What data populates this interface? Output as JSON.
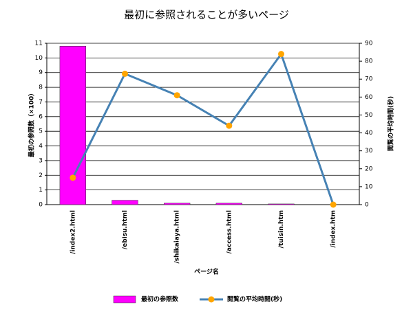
{
  "chart_data": {
    "type": "bar",
    "title": "最初に参照されることが多いページ",
    "xlabel": "ページ名",
    "ylabel": "最初の参照数（×100）",
    "y2label": "閲覧の平均時間(秒)",
    "categories": [
      "/index2.html",
      "/ebisu.html",
      "/shikaiaya.html",
      "/access.html",
      "/tuisin.htm",
      "/index.htm"
    ],
    "series": [
      {
        "name": "最初の参照数",
        "type": "bar",
        "color": "#ff00ff",
        "values": [
          10.8,
          0.3,
          0.1,
          0.1,
          0.05,
          0
        ]
      },
      {
        "name": "閲覧の平均時間(秒)",
        "type": "line",
        "axis": "y2",
        "color": "#4682b4",
        "marker_color": "#ffa500",
        "values": [
          15,
          73,
          61,
          44,
          84,
          0
        ]
      }
    ],
    "ylim": [
      0,
      11
    ],
    "yticks": [
      0,
      1,
      2,
      3,
      4,
      5,
      6,
      7,
      8,
      9,
      10,
      11
    ],
    "y2lim": [
      0,
      90
    ],
    "y2ticks": [
      0,
      10,
      20,
      30,
      40,
      50,
      60,
      70,
      80,
      90
    ],
    "grid": true
  }
}
